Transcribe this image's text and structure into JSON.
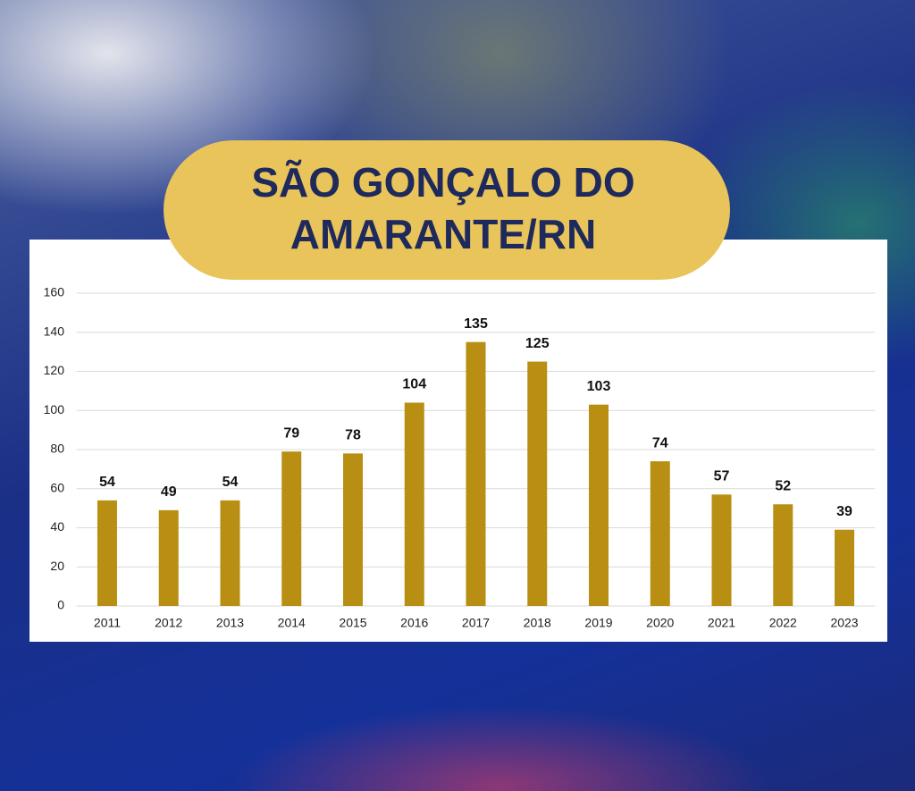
{
  "chart_data": {
    "type": "bar",
    "title": [
      "SÃO GONÇALO DO",
      "AMARANTE/RN"
    ],
    "categories": [
      "2011",
      "2012",
      "2013",
      "2014",
      "2015",
      "2016",
      "2017",
      "2018",
      "2019",
      "2020",
      "2021",
      "2022",
      "2023"
    ],
    "values": [
      54,
      49,
      54,
      79,
      78,
      104,
      135,
      125,
      103,
      74,
      57,
      52,
      39
    ],
    "color": "#b88f12",
    "ylim": [
      0,
      160
    ],
    "yticks": [
      0,
      20,
      40,
      60,
      80,
      100,
      120,
      140,
      160
    ],
    "grid": true
  }
}
